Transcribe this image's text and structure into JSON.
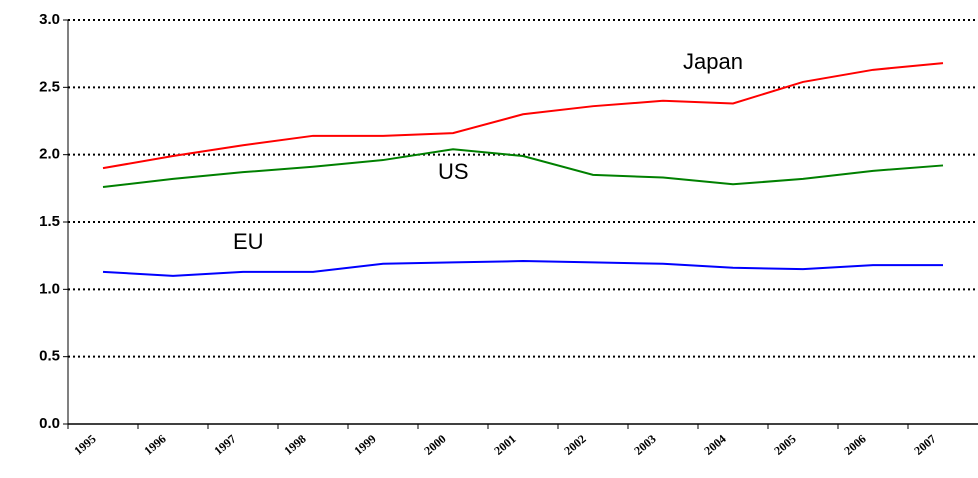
{
  "chart_data": {
    "type": "line",
    "categories": [
      "1995",
      "1996",
      "1997",
      "1998",
      "1999",
      "2000",
      "2001",
      "2002",
      "2003",
      "2004",
      "2005",
      "2006",
      "2007"
    ],
    "series": [
      {
        "name": "Japan",
        "color": "#ff0000",
        "values": [
          1.9,
          1.99,
          2.07,
          2.14,
          2.14,
          2.16,
          2.3,
          2.36,
          2.4,
          2.38,
          2.54,
          2.63,
          2.68
        ]
      },
      {
        "name": "US",
        "color": "#008000",
        "values": [
          1.76,
          1.82,
          1.87,
          1.91,
          1.96,
          2.04,
          1.99,
          1.85,
          1.83,
          1.78,
          1.82,
          1.88,
          1.92
        ]
      },
      {
        "name": "EU",
        "color": "#0000ff",
        "values": [
          1.13,
          1.1,
          1.13,
          1.13,
          1.19,
          1.2,
          1.21,
          1.2,
          1.19,
          1.16,
          1.15,
          1.18,
          1.18
        ]
      }
    ],
    "ylim": [
      0,
      3
    ],
    "yticks": [
      {
        "value": 0,
        "label": "0.0"
      },
      {
        "value": 0.5,
        "label": "0.5"
      },
      {
        "value": 1,
        "label": "1.0"
      },
      {
        "value": 1.5,
        "label": "1.5"
      },
      {
        "value": 2,
        "label": "2.0"
      },
      {
        "value": 2.5,
        "label": "2.5"
      },
      {
        "value": 3,
        "label": "3.0"
      }
    ],
    "grid": true
  }
}
